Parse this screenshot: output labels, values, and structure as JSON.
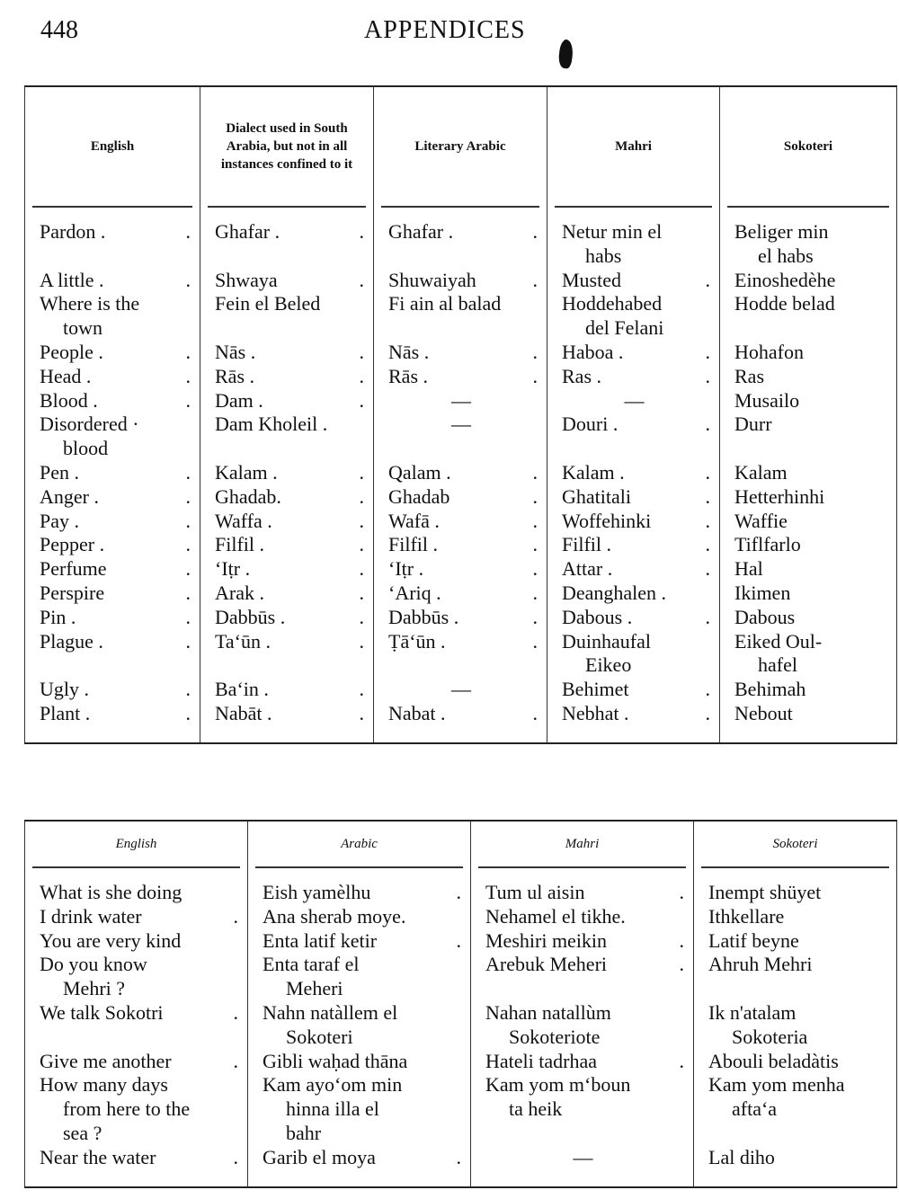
{
  "page": {
    "number": "448",
    "running_title": "APPENDICES"
  },
  "table1": {
    "headers": [
      "English",
      "Dialect used in South Arabia, but not in all instances confined to it",
      "Literary Arabic",
      "Mahri",
      "Sokoteri"
    ],
    "rows": [
      [
        {
          "t": "Pardon .",
          "d": "."
        },
        {
          "t": "Ghafar .",
          "d": "."
        },
        {
          "t": "Ghafar .",
          "d": "."
        },
        {
          "t": "Netur min el\nhabs"
        },
        {
          "t": "Beliger min\nel habs"
        }
      ],
      [
        {
          "t": "A little .",
          "d": "."
        },
        {
          "t": "Shwaya",
          "d": "."
        },
        {
          "t": "Shuwaiyah",
          "d": "."
        },
        {
          "t": "Musted",
          "d": "."
        },
        {
          "t": "Einoshedèhe"
        }
      ],
      [
        {
          "t": "Where is the\ntown"
        },
        {
          "t": "Fein el Beled"
        },
        {
          "t": "Fi ain al balad"
        },
        {
          "t": "Hoddehabed\ndel Felani"
        },
        {
          "t": "Hodde belad"
        }
      ],
      [
        {
          "t": "People .",
          "d": "."
        },
        {
          "t": "Nās   .",
          "d": "."
        },
        {
          "t": "Nās   .",
          "d": "."
        },
        {
          "t": "Haboa .",
          "d": "."
        },
        {
          "t": "Hohafon"
        }
      ],
      [
        {
          "t": "Head   .",
          "d": "."
        },
        {
          "t": "Rās   .",
          "d": "."
        },
        {
          "t": "Rās   .",
          "d": "."
        },
        {
          "t": "Ras   .",
          "d": "."
        },
        {
          "t": "Ras"
        }
      ],
      [
        {
          "t": "Blood  .",
          "d": "."
        },
        {
          "t": "Dam   .",
          "d": "."
        },
        {
          "t": "—"
        },
        {
          "t": "—"
        },
        {
          "t": "Musailo"
        }
      ],
      [
        {
          "t": "Disordered ·\nblood"
        },
        {
          "t": "Dam Kholeil ."
        },
        {
          "t": "—"
        },
        {
          "t": "Douri  .",
          "d": "."
        },
        {
          "t": "Durr"
        }
      ],
      [
        {
          "t": "Pen    .",
          "d": "."
        },
        {
          "t": "Kalam .",
          "d": "."
        },
        {
          "t": "Qalam .",
          "d": "."
        },
        {
          "t": "Kalam .",
          "d": "."
        },
        {
          "t": "Kalam"
        }
      ],
      [
        {
          "t": "Anger  .",
          "d": "."
        },
        {
          "t": "Ghadab.",
          "d": "."
        },
        {
          "t": "Ghadab",
          "d": "."
        },
        {
          "t": "Ghatitali",
          "d": "."
        },
        {
          "t": "Hetterhinhi"
        }
      ],
      [
        {
          "t": "Pay    .",
          "d": "."
        },
        {
          "t": "Waffa  .",
          "d": "."
        },
        {
          "t": "Wafā   .",
          "d": "."
        },
        {
          "t": "Woffehinki",
          "d": "."
        },
        {
          "t": "Waffie"
        }
      ],
      [
        {
          "t": "Pepper .",
          "d": "."
        },
        {
          "t": "Filfil  .",
          "d": "."
        },
        {
          "t": "Filfil  .",
          "d": "."
        },
        {
          "t": "Filfil  .",
          "d": "."
        },
        {
          "t": "Tiflfarlo"
        }
      ],
      [
        {
          "t": "Perfume",
          "d": "."
        },
        {
          "t": "‘Iṭr   .",
          "d": "."
        },
        {
          "t": "‘Iṭr   .",
          "d": "."
        },
        {
          "t": "Attar  .",
          "d": "."
        },
        {
          "t": "Hal"
        }
      ],
      [
        {
          "t": "Perspire",
          "d": "."
        },
        {
          "t": "Arak   .",
          "d": "."
        },
        {
          "t": "‘Ariq  .",
          "d": "."
        },
        {
          "t": "Deanghalen ."
        },
        {
          "t": "Ikimen"
        }
      ],
      [
        {
          "t": "Pin    .",
          "d": "."
        },
        {
          "t": "Dabbūs .",
          "d": "."
        },
        {
          "t": "Dabbūs .",
          "d": "."
        },
        {
          "t": "Dabous .",
          "d": "."
        },
        {
          "t": "Dabous"
        }
      ],
      [
        {
          "t": "Plague .",
          "d": "."
        },
        {
          "t": "Ta‘ūn  .",
          "d": "."
        },
        {
          "t": "Ṭā‘ūn  .",
          "d": "."
        },
        {
          "t": "Duinhaufal\nEikeo"
        },
        {
          "t": "Eiked Oul-\nhafel"
        }
      ],
      [
        {
          "t": "Ugly   .",
          "d": "."
        },
        {
          "t": "Ba‘in  .",
          "d": "."
        },
        {
          "t": "—"
        },
        {
          "t": "Behimet",
          "d": "."
        },
        {
          "t": "Behimah"
        }
      ],
      [
        {
          "t": "Plant  .",
          "d": "."
        },
        {
          "t": "Nabāt  .",
          "d": "."
        },
        {
          "t": "Nabat  .",
          "d": "."
        },
        {
          "t": "Nebhat .",
          "d": "."
        },
        {
          "t": "Nebout"
        }
      ]
    ]
  },
  "table2": {
    "headers": [
      "English",
      "Arabic",
      "Mahri",
      "Sokoteri"
    ],
    "rows": [
      [
        {
          "t": "What is she doing"
        },
        {
          "t": "Eish yamèlhu",
          "d": "."
        },
        {
          "t": "Tum ul aisin",
          "d": "."
        },
        {
          "t": "Inempt shüyet"
        }
      ],
      [
        {
          "t": "I drink water",
          "d": "."
        },
        {
          "t": "Ana sherab moye."
        },
        {
          "t": "Nehamel el tikhe."
        },
        {
          "t": "Ithkellare"
        }
      ],
      [
        {
          "t": "You are very kind"
        },
        {
          "t": "Enta latif ketir",
          "d": "."
        },
        {
          "t": "Meshiri meikin",
          "d": "."
        },
        {
          "t": "Latif beyne"
        }
      ],
      [
        {
          "t": "Do you know\nMehri ?"
        },
        {
          "t": "Enta taraf el\nMeheri"
        },
        {
          "t": "Arebuk Meheri",
          "d": "."
        },
        {
          "t": "Ahruh Mehri"
        }
      ],
      [
        {
          "t": "We talk Sokotri",
          "d": "."
        },
        {
          "t": "Nahn natàllem el\nSokoteri"
        },
        {
          "t": "Nahan natallùm\nSokoteriote"
        },
        {
          "t": "Ik n'atalam\nSokoteria"
        }
      ],
      [
        {
          "t": "Give me another",
          "d": "."
        },
        {
          "t": "Gibli waḥad thāna"
        },
        {
          "t": "Hateli tadrhaa",
          "d": "."
        },
        {
          "t": "Abouli beladàtis"
        }
      ],
      [
        {
          "t": "How many days\nfrom here to the\nsea ?"
        },
        {
          "t": "Kam ayo‘om min\nhinna illa el\nbahr"
        },
        {
          "t": "Kam yom m‘boun\nta heik"
        },
        {
          "t": "Kam yom menha\nafta‘a"
        }
      ],
      [
        {
          "t": "Near the water",
          "d": "."
        },
        {
          "t": "Garib el moya",
          "d": "."
        },
        {
          "t": "—"
        },
        {
          "t": "Lal diho"
        }
      ]
    ]
  }
}
